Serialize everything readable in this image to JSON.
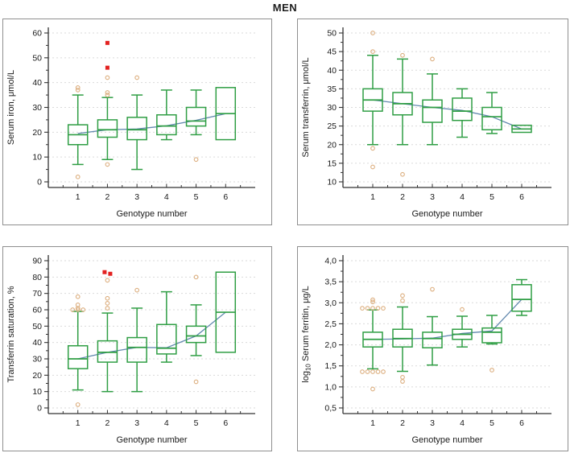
{
  "title": "MEN",
  "colors": {
    "box": "#2f9e44",
    "outlier": "#dcae7e",
    "extreme": "#e32221",
    "trend": "#6289ae",
    "grid": "#dadada",
    "axis": "#333333",
    "text": "#1a1a1a"
  },
  "chart_data": [
    {
      "type": "boxplot",
      "title": "",
      "xlabel": "Genotype number",
      "ylabel": "Serum iron, μmol/L",
      "ylabel_segments": [
        {
          "t": "Serum iron, μmol/L"
        }
      ],
      "ylim": [
        0,
        60
      ],
      "yticks": [
        0,
        10,
        20,
        30,
        40,
        50,
        60
      ],
      "ytick_labels": [
        "0",
        "10",
        "20",
        "30",
        "40",
        "50",
        "60"
      ],
      "grid": true,
      "categories": [
        "1",
        "2",
        "3",
        "4",
        "5",
        "6"
      ],
      "boxes": [
        {
          "q1": 15,
          "median": 19,
          "q3": 23,
          "whisker_low": 7,
          "whisker_high": 35,
          "outliers": [
            38,
            37,
            2
          ],
          "extremes": []
        },
        {
          "q1": 18,
          "median": 21,
          "q3": 25,
          "whisker_low": 9,
          "whisker_high": 34,
          "outliers": [
            42,
            36,
            35,
            7
          ],
          "extremes": [
            56,
            46
          ]
        },
        {
          "q1": 17,
          "median": 21,
          "q3": 26,
          "whisker_low": 5,
          "whisker_high": 35,
          "outliers": [
            42
          ],
          "extremes": []
        },
        {
          "q1": 19,
          "median": 22.5,
          "q3": 27,
          "whisker_low": 17,
          "whisker_high": 37,
          "outliers": [],
          "extremes": []
        },
        {
          "q1": 22.5,
          "median": 24.5,
          "q3": 30,
          "whisker_low": 19,
          "whisker_high": 37,
          "outliers": [
            9
          ],
          "extremes": []
        },
        {
          "q1": 17,
          "median": 27.5,
          "q3": 38,
          "whisker_low": null,
          "whisker_high": null,
          "outliers": [],
          "extremes": []
        }
      ],
      "trend": [
        19.5,
        21,
        21.3,
        22.6,
        24.8,
        27.5
      ]
    },
    {
      "type": "boxplot",
      "title": "",
      "xlabel": "Genotype number",
      "ylabel": "Serum transferrin, μmol/L",
      "ylabel_segments": [
        {
          "t": "Serum transferrin, μmol/L"
        }
      ],
      "ylim": [
        10,
        50
      ],
      "yticks": [
        10,
        15,
        20,
        25,
        30,
        35,
        40,
        45,
        50
      ],
      "ytick_labels": [
        "10",
        "15",
        "20",
        "25",
        "30",
        "35",
        "40",
        "45",
        "50"
      ],
      "grid": true,
      "categories": [
        "1",
        "2",
        "3",
        "4",
        "5",
        "6"
      ],
      "boxes": [
        {
          "q1": 29,
          "median": 32,
          "q3": 35,
          "whisker_low": 20,
          "whisker_high": 44,
          "outliers": [
            50,
            45,
            19,
            14
          ],
          "extremes": []
        },
        {
          "q1": 28,
          "median": 31,
          "q3": 34,
          "whisker_low": 20,
          "whisker_high": 43,
          "outliers": [
            44,
            12
          ],
          "extremes": []
        },
        {
          "q1": 26,
          "median": 30,
          "q3": 32,
          "whisker_low": 20,
          "whisker_high": 39,
          "outliers": [
            43
          ],
          "extremes": []
        },
        {
          "q1": 26.5,
          "median": 29,
          "q3": 32.5,
          "whisker_low": 22,
          "whisker_high": 35,
          "outliers": [],
          "extremes": []
        },
        {
          "q1": 24,
          "median": 27.5,
          "q3": 30,
          "whisker_low": 23,
          "whisker_high": 34,
          "outliers": [],
          "extremes": []
        },
        {
          "q1": 23.3,
          "median": 24.2,
          "q3": 25.2,
          "whisker_low": null,
          "whisker_high": null,
          "outliers": [],
          "extremes": []
        }
      ],
      "trend": [
        32,
        31,
        30,
        29.2,
        27.5,
        24.2
      ]
    },
    {
      "type": "boxplot",
      "title": "",
      "xlabel": "Genotype number",
      "ylabel": "Transferrin saturation, %",
      "ylabel_segments": [
        {
          "t": "Transferrin saturation, %"
        }
      ],
      "ylim": [
        0,
        90
      ],
      "yticks": [
        0,
        10,
        20,
        30,
        40,
        50,
        60,
        70,
        80,
        90
      ],
      "ytick_labels": [
        "0",
        "10",
        "20",
        "30",
        "40",
        "50",
        "60",
        "70",
        "80",
        "90"
      ],
      "grid": true,
      "categories": [
        "1",
        "2",
        "3",
        "4",
        "5",
        "6"
      ],
      "boxes": [
        {
          "q1": 24,
          "median": 30,
          "q3": 38,
          "whisker_low": 11,
          "whisker_high": 59,
          "outliers": [
            68,
            63,
            61,
            60,
            60,
            60,
            2
          ],
          "extremes": []
        },
        {
          "q1": 28,
          "median": 34,
          "q3": 41,
          "whisker_low": 10,
          "whisker_high": 58,
          "outliers": [
            78,
            67,
            64,
            61
          ],
          "extremes": [
            83,
            82
          ]
        },
        {
          "q1": 28,
          "median": 37,
          "q3": 43,
          "whisker_low": 10,
          "whisker_high": 61,
          "outliers": [
            72
          ],
          "extremes": []
        },
        {
          "q1": 33,
          "median": 36.5,
          "q3": 51,
          "whisker_low": 28,
          "whisker_high": 71,
          "outliers": [],
          "extremes": []
        },
        {
          "q1": 40,
          "median": 44,
          "q3": 50,
          "whisker_low": 32,
          "whisker_high": 63,
          "outliers": [
            80,
            16
          ],
          "extremes": []
        },
        {
          "q1": 34,
          "median": 58.5,
          "q3": 83,
          "whisker_low": null,
          "whisker_high": null,
          "outliers": [],
          "extremes": []
        }
      ],
      "trend": [
        30,
        34,
        37,
        36.8,
        44,
        58.5
      ]
    },
    {
      "type": "boxplot",
      "title": "",
      "xlabel": "Genotype number",
      "ylabel": "log10 Serum ferritin, μg/L",
      "ylabel_segments": [
        {
          "t": "log"
        },
        {
          "t": "10",
          "sub": true
        },
        {
          "t": " Serum ferritin, μg/L"
        }
      ],
      "ylim": [
        0.5,
        4.0
      ],
      "yticks": [
        0.5,
        1.0,
        1.5,
        2.0,
        2.5,
        3.0,
        3.5,
        4.0
      ],
      "ytick_labels": [
        "0,5",
        "1,0",
        "1,5",
        "2,0",
        "2,5",
        "3,0",
        "3,5",
        "4,0"
      ],
      "grid": true,
      "categories": [
        "1",
        "2",
        "3",
        "4",
        "5",
        "6"
      ],
      "boxes": [
        {
          "q1": 1.95,
          "median": 2.13,
          "q3": 2.3,
          "whisker_low": 1.43,
          "whisker_high": 2.83,
          "outliers": [
            3.07,
            3.02,
            2.87,
            2.87,
            2.87,
            2.87,
            2.87,
            1.36,
            1.36,
            1.36,
            1.36,
            1.36,
            0.95
          ],
          "extremes": []
        },
        {
          "q1": 1.95,
          "median": 2.15,
          "q3": 2.37,
          "whisker_low": 1.37,
          "whisker_high": 2.9,
          "outliers": [
            3.17,
            3.05,
            1.23,
            1.13
          ],
          "extremes": []
        },
        {
          "q1": 1.93,
          "median": 2.15,
          "q3": 2.3,
          "whisker_low": 1.52,
          "whisker_high": 2.67,
          "outliers": [
            3.32
          ],
          "extremes": []
        },
        {
          "q1": 2.13,
          "median": 2.25,
          "q3": 2.37,
          "whisker_low": 1.95,
          "whisker_high": 2.68,
          "outliers": [
            2.84
          ],
          "extremes": []
        },
        {
          "q1": 2.05,
          "median": 2.3,
          "q3": 2.4,
          "whisker_low": 2.02,
          "whisker_high": 2.7,
          "outliers": [
            1.4
          ],
          "extremes": []
        },
        {
          "q1": 2.8,
          "median": 3.08,
          "q3": 3.43,
          "whisker_low": 2.7,
          "whisker_high": 3.55,
          "outliers": [],
          "extremes": []
        }
      ],
      "trend": [
        2.13,
        2.14,
        2.16,
        2.27,
        2.33,
        3.08
      ]
    }
  ]
}
